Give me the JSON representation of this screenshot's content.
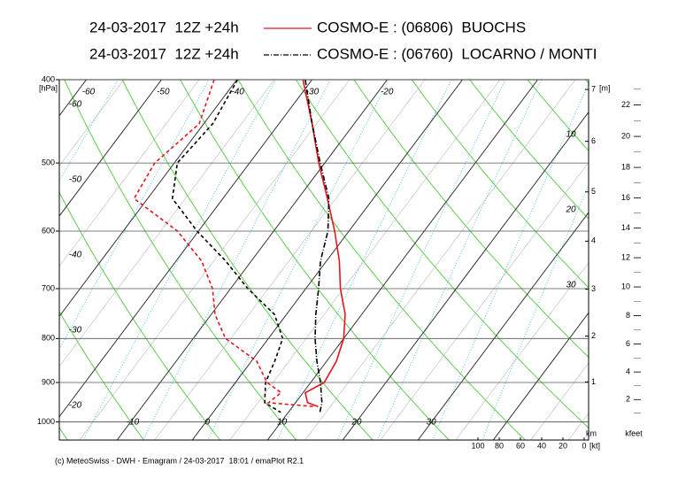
{
  "chart_data": {
    "type": "emagram",
    "log_scale": true,
    "y_unit": "[hPa]",
    "ylim": [
      400,
      1050
    ],
    "yticks": [
      400,
      500,
      600,
      700,
      800,
      900,
      1000
    ],
    "xticks": [
      -60,
      -50,
      -40,
      -30,
      -20,
      -10,
      0,
      10,
      20,
      30
    ],
    "theta_labels": [
      10,
      20,
      30
    ],
    "series": [
      {
        "name": "COSMO-E : (06806)  BUOCHS",
        "run": "24-03-2017  12Z +24h",
        "color": "#e8141c",
        "line_style": "solid",
        "pressure": [
          400,
          450,
          500,
          550,
          600,
          650,
          700,
          750,
          800,
          850,
          900,
          925,
          950,
          960
        ],
        "temperature": [
          -31.2,
          -25.6,
          -20.8,
          -16.1,
          -11.9,
          -8.3,
          -5.4,
          -2.2,
          0,
          1.3,
          1.8,
          0.3,
          1.6,
          3.4
        ],
        "dewpoint": [
          -43,
          -40.6,
          -42.6,
          -41.8,
          -32.8,
          -26.6,
          -22.4,
          -19.5,
          -15.7,
          -9.3,
          -5.8,
          -2.9,
          -3.6,
          2.9
        ]
      },
      {
        "name": "COSMO-E : (06760)  LOCARNO / MONTI",
        "run": "24-03-2017  12Z +24h",
        "color": "#000000",
        "line_style": "dashdot",
        "pressure": [
          400,
          450,
          500,
          550,
          600,
          650,
          700,
          750,
          800,
          850,
          900,
          950,
          975
        ],
        "temperature": [
          -30.9,
          -25.6,
          -20.6,
          -15.9,
          -12.8,
          -10.8,
          -8.3,
          -6.1,
          -3.8,
          -1.3,
          1.3,
          3.5,
          4.2
        ],
        "dewpoint": [
          -39.9,
          -38.8,
          -39.6,
          -36.7,
          -30.2,
          -23.4,
          -17.7,
          -11.6,
          -8.1,
          -6.9,
          -6,
          -4.1,
          -1
        ]
      }
    ],
    "km_axis": {
      "label_top": "[m]",
      "label_bottom": "km",
      "ticks": [
        1,
        2,
        3,
        4,
        5,
        6,
        7
      ]
    },
    "kfeet_axis": {
      "label": "kfeet",
      "ticks": [
        2,
        4,
        6,
        8,
        10,
        12,
        14,
        16,
        18,
        20,
        22
      ]
    },
    "wind_axis": {
      "unit": "[kt]",
      "ticks": [
        100,
        80,
        60,
        40,
        20,
        0
      ]
    },
    "footer": "(c) MeteoSwiss - DWH - Emagram / 24-03-2017  18:01 / emaPlot R2.1"
  }
}
